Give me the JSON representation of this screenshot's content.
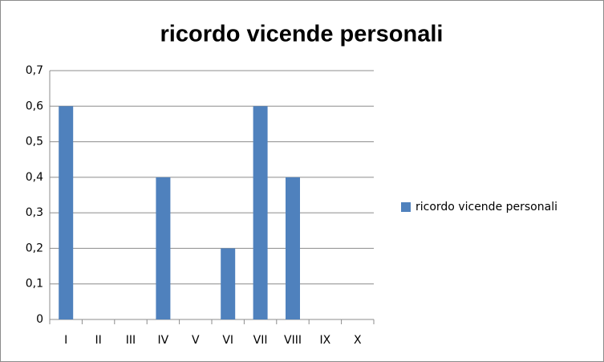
{
  "chart_data": {
    "type": "bar",
    "title": "ricordo vicende personali",
    "categories": [
      "I",
      "II",
      "III",
      "IV",
      "V",
      "VI",
      "VII",
      "VIII",
      "IX",
      "X"
    ],
    "series": [
      {
        "name": "ricordo vicende personali",
        "color": "#4f81bd",
        "values": [
          0.6,
          0,
          0,
          0.4,
          0,
          0.2,
          0.6,
          0.4,
          0,
          0
        ]
      }
    ],
    "ylim": [
      0,
      0.7
    ],
    "yticks": [
      0,
      {
        "value": 0.1,
        "label": "0,1"
      },
      {
        "value": 0.2,
        "label": "0,2"
      },
      {
        "value": 0.3,
        "label": "0,3"
      },
      {
        "value": 0.4,
        "label": "0,4"
      },
      {
        "value": 0.5,
        "label": "0,5"
      },
      {
        "value": 0.6,
        "label": "0,6"
      },
      {
        "value": 0.7,
        "label": "0,7"
      }
    ],
    "grid": true,
    "legend": "right"
  }
}
